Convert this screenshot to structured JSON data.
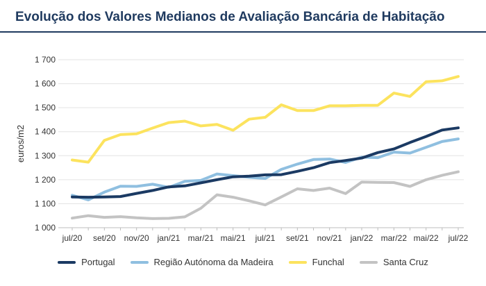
{
  "title": "Evolução dos Valores Medianos de Avaliação Bancária de Habitação",
  "chart_data": {
    "type": "line",
    "title": "Evolução dos Valores Medianos de Avaliação Bancária de Habitação",
    "xlabel": "",
    "ylabel": "euros/m2",
    "ylim": [
      1000,
      1700
    ],
    "yticks": [
      1000,
      1100,
      1200,
      1300,
      1400,
      1500,
      1600,
      1700
    ],
    "ytick_labels": [
      "1 000",
      "1 100",
      "1 200",
      "1 300",
      "1 400",
      "1 500",
      "1 600",
      "1 700"
    ],
    "grid": "horizontal",
    "legend_position": "bottom",
    "categories": [
      "jul/20",
      "ago/20",
      "set/20",
      "out/20",
      "nov/20",
      "dez/20",
      "jan/21",
      "fev/21",
      "mar/21",
      "abr/21",
      "mai/21",
      "jun/21",
      "jul/21",
      "ago/21",
      "set/21",
      "out/21",
      "nov/21",
      "dez/21",
      "jan/22",
      "fev/22",
      "mar/22",
      "abr/22",
      "mai/22",
      "jun/22",
      "jul/22"
    ],
    "xtick_labels": [
      "jul/20",
      "",
      "set/20",
      "",
      "nov/20",
      "",
      "jan/21",
      "",
      "mar/21",
      "",
      "mai/21",
      "",
      "jul/21",
      "",
      "set/21",
      "",
      "nov/21",
      "",
      "jan/22",
      "",
      "mar/22",
      "",
      "mai/22",
      "",
      "jul/22"
    ],
    "series": [
      {
        "name": "Portugal",
        "color": "#1b3a63",
        "values": [
          1128,
          1127,
          1128,
          1130,
          1143,
          1155,
          1170,
          1174,
          1187,
          1200,
          1212,
          1215,
          1220,
          1221,
          1235,
          1250,
          1271,
          1280,
          1290,
          1313,
          1328,
          1355,
          1380,
          1407,
          1416
        ]
      },
      {
        "name": "Região Autónoma da Madeira",
        "color": "#8fbfe0",
        "values": [
          1135,
          1116,
          1148,
          1173,
          1172,
          1181,
          1168,
          1193,
          1197,
          1224,
          1217,
          1210,
          1205,
          1243,
          1265,
          1284,
          1286,
          1272,
          1294,
          1292,
          1315,
          1311,
          1335,
          1359,
          1370
        ]
      },
      {
        "name": "Funchal",
        "color": "#fce35e",
        "values": [
          1282,
          1273,
          1364,
          1388,
          1391,
          1415,
          1438,
          1444,
          1424,
          1430,
          1406,
          1452,
          1460,
          1512,
          1488,
          1488,
          1508,
          1508,
          1510,
          1510,
          1561,
          1547,
          1608,
          1612,
          1630
        ]
      },
      {
        "name": "Santa Cruz",
        "color": "#c3c3c3",
        "values": [
          1040,
          1050,
          1043,
          1046,
          1041,
          1038,
          1039,
          1045,
          1081,
          1137,
          1127,
          1112,
          1095,
          1128,
          1162,
          1155,
          1165,
          1142,
          1190,
          1189,
          1188,
          1172,
          1200,
          1218,
          1233
        ]
      }
    ]
  }
}
